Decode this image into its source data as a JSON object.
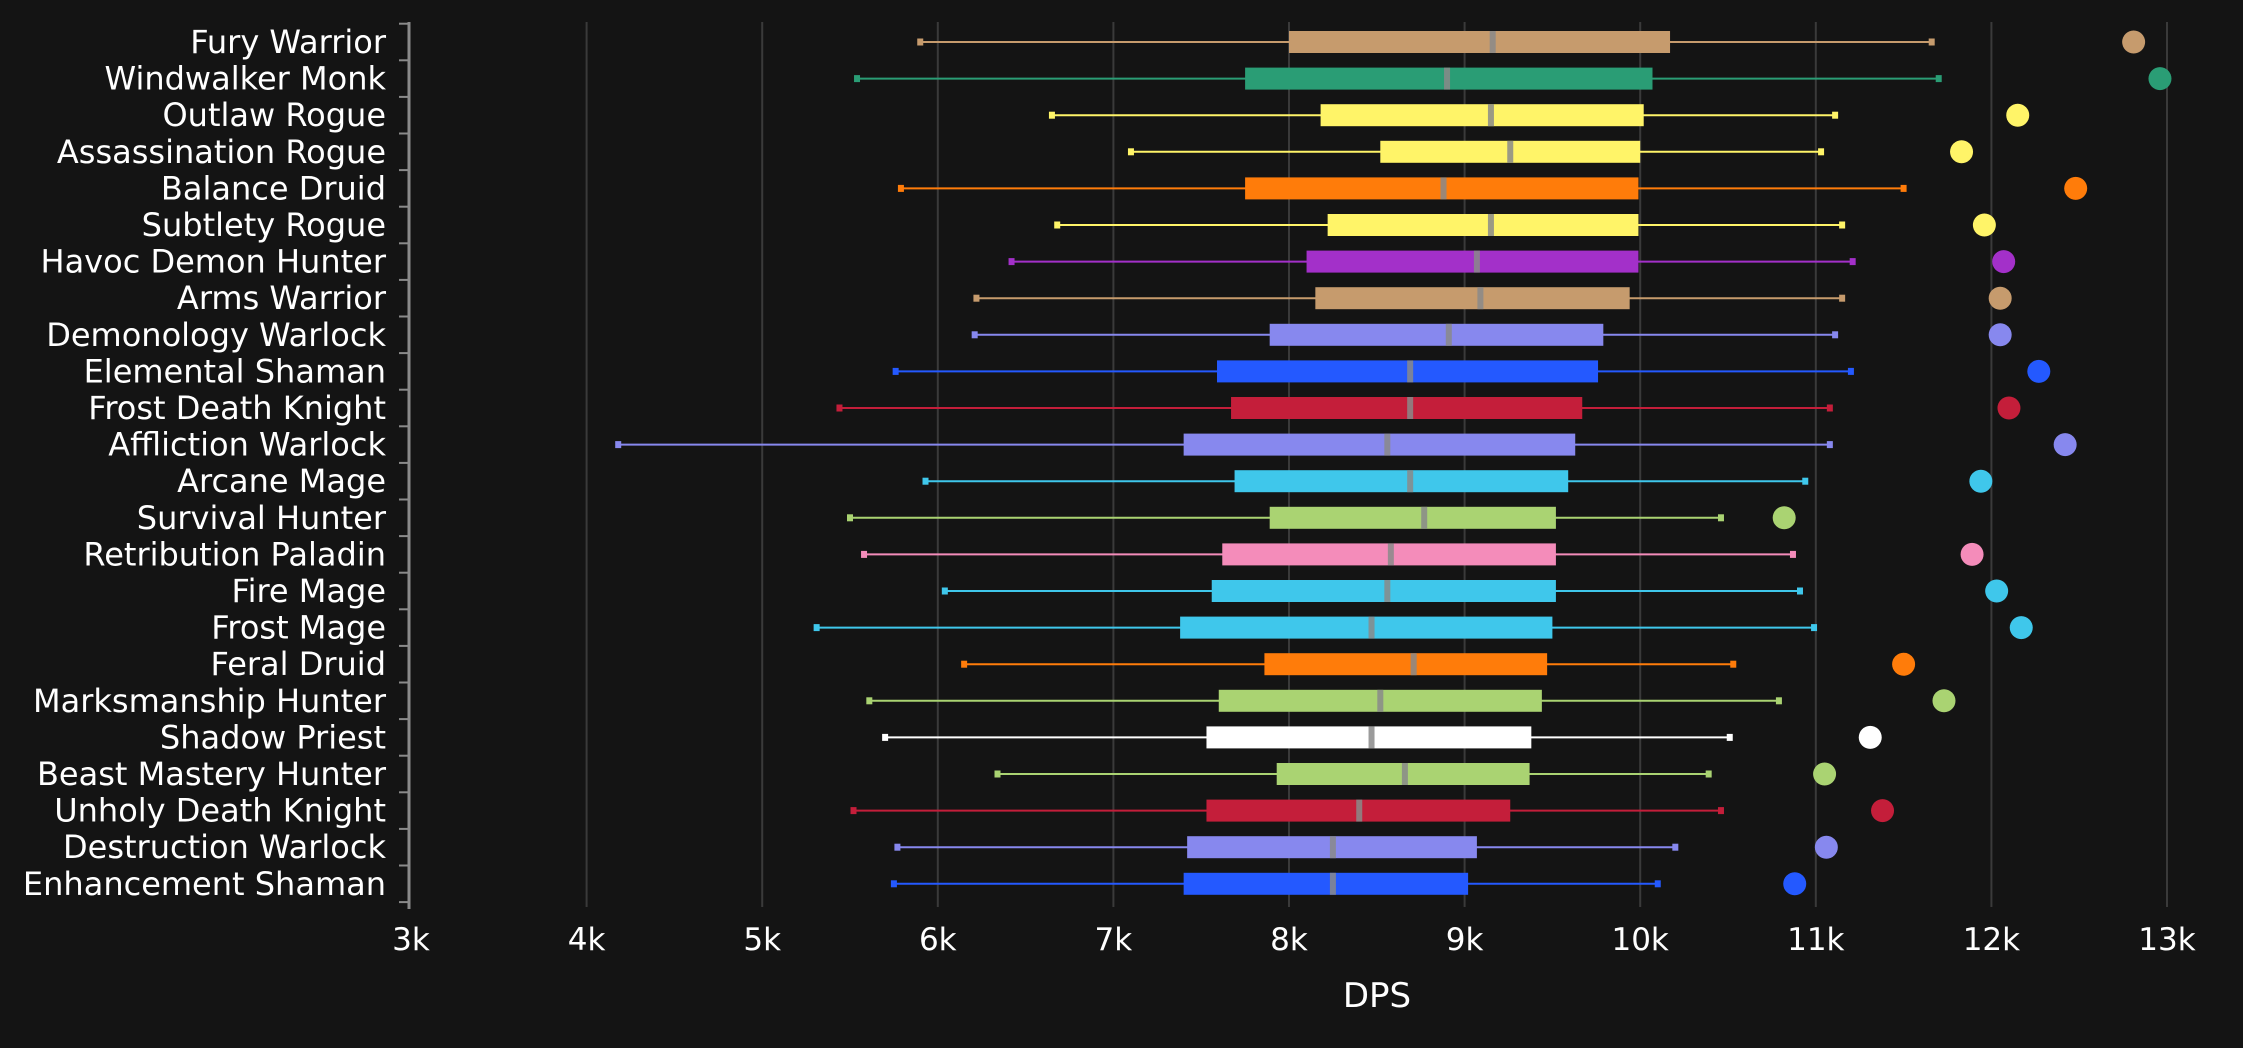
{
  "chart_data": {
    "type": "box",
    "orientation": "horizontal",
    "title": "",
    "xlabel": "DPS",
    "ylabel": "",
    "xlim": [
      3000,
      13000
    ],
    "x_ticks": [
      3000,
      4000,
      5000,
      6000,
      7000,
      8000,
      9000,
      10000,
      11000,
      12000,
      13000
    ],
    "x_tick_labels": [
      "3k",
      "4k",
      "5k",
      "6k",
      "7k",
      "8k",
      "9k",
      "10k",
      "11k",
      "12k",
      "13k"
    ],
    "grid": "vertical",
    "series": [
      {
        "name": "Fury Warrior",
        "color": "#C69B6D",
        "min": 5900,
        "q1": 8000,
        "median": 9160,
        "q3": 10170,
        "max": 11660,
        "outlier": 12810
      },
      {
        "name": "Windwalker Monk",
        "color": "#2A9D75",
        "min": 5540,
        "q1": 7750,
        "median": 8900,
        "q3": 10070,
        "max": 11700,
        "outlier": 12960
      },
      {
        "name": "Outlaw Rogue",
        "color": "#FFF468",
        "min": 6650,
        "q1": 8180,
        "median": 9150,
        "q3": 10020,
        "max": 11110,
        "outlier": 12150
      },
      {
        "name": "Assassination Rogue",
        "color": "#FFF468",
        "min": 7100,
        "q1": 8520,
        "median": 9260,
        "q3": 10000,
        "max": 11030,
        "outlier": 11830
      },
      {
        "name": "Balance Druid",
        "color": "#FF7C0A",
        "min": 5790,
        "q1": 7750,
        "median": 8880,
        "q3": 9990,
        "max": 11500,
        "outlier": 12480
      },
      {
        "name": "Subtlety Rogue",
        "color": "#FFF468",
        "min": 6680,
        "q1": 8220,
        "median": 9150,
        "q3": 9990,
        "max": 11150,
        "outlier": 11960
      },
      {
        "name": "Havoc Demon Hunter",
        "color": "#A330C9",
        "min": 6420,
        "q1": 8100,
        "median": 9070,
        "q3": 9990,
        "max": 11210,
        "outlier": 12070
      },
      {
        "name": "Arms Warrior",
        "color": "#C69B6D",
        "min": 6220,
        "q1": 8150,
        "median": 9090,
        "q3": 9940,
        "max": 11150,
        "outlier": 12050
      },
      {
        "name": "Demonology Warlock",
        "color": "#8788EE",
        "min": 6210,
        "q1": 7890,
        "median": 8910,
        "q3": 9790,
        "max": 11110,
        "outlier": 12050
      },
      {
        "name": "Elemental Shaman",
        "color": "#2459FF",
        "min": 5760,
        "q1": 7590,
        "median": 8690,
        "q3": 9760,
        "max": 11200,
        "outlier": 12270
      },
      {
        "name": "Frost Death Knight",
        "color": "#C41E3A",
        "min": 5440,
        "q1": 7670,
        "median": 8690,
        "q3": 9670,
        "max": 11080,
        "outlier": 12100
      },
      {
        "name": "Affliction Warlock",
        "color": "#8788EE",
        "min": 4180,
        "q1": 7400,
        "median": 8560,
        "q3": 9630,
        "max": 11080,
        "outlier": 12420
      },
      {
        "name": "Arcane Mage",
        "color": "#3FC7EB",
        "min": 5930,
        "q1": 7690,
        "median": 8690,
        "q3": 9590,
        "max": 10940,
        "outlier": 11940
      },
      {
        "name": "Survival Hunter",
        "color": "#AAD372",
        "min": 5500,
        "q1": 7890,
        "median": 8770,
        "q3": 9520,
        "max": 10460,
        "outlier": 10820
      },
      {
        "name": "Retribution Paladin",
        "color": "#F48CBA",
        "min": 5580,
        "q1": 7620,
        "median": 8580,
        "q3": 9520,
        "max": 10870,
        "outlier": 11890
      },
      {
        "name": "Fire Mage",
        "color": "#3FC7EB",
        "min": 6040,
        "q1": 7560,
        "median": 8560,
        "q3": 9520,
        "max": 10910,
        "outlier": 12030
      },
      {
        "name": "Frost Mage",
        "color": "#3FC7EB",
        "min": 5310,
        "q1": 7380,
        "median": 8470,
        "q3": 9500,
        "max": 10990,
        "outlier": 12170
      },
      {
        "name": "Feral Druid",
        "color": "#FF7C0A",
        "min": 6150,
        "q1": 7860,
        "median": 8710,
        "q3": 9470,
        "max": 10530,
        "outlier": 11500
      },
      {
        "name": "Marksmanship Hunter",
        "color": "#AAD372",
        "min": 5610,
        "q1": 7600,
        "median": 8520,
        "q3": 9440,
        "max": 10790,
        "outlier": 11730
      },
      {
        "name": "Shadow Priest",
        "color": "#FFFFFF",
        "min": 5700,
        "q1": 7530,
        "median": 8470,
        "q3": 9380,
        "max": 10510,
        "outlier": 11310
      },
      {
        "name": "Beast Mastery Hunter",
        "color": "#AAD372",
        "min": 6340,
        "q1": 7930,
        "median": 8660,
        "q3": 9370,
        "max": 10390,
        "outlier": 11050
      },
      {
        "name": "Unholy Death Knight",
        "color": "#C41E3A",
        "min": 5520,
        "q1": 7530,
        "median": 8400,
        "q3": 9260,
        "max": 10460,
        "outlier": 11380
      },
      {
        "name": "Destruction Warlock",
        "color": "#8788EE",
        "min": 5770,
        "q1": 7420,
        "median": 8250,
        "q3": 9070,
        "max": 10200,
        "outlier": 11060
      },
      {
        "name": "Enhancement Shaman",
        "color": "#2459FF",
        "min": 5750,
        "q1": 7400,
        "median": 8250,
        "q3": 9020,
        "max": 10100,
        "outlier": 10880
      }
    ]
  },
  "colors": {
    "background": "#141414",
    "grid": "#3a3a3a",
    "axis": "#8a8a8a",
    "text": "#ffffff",
    "median_mark": "#8a8a8a"
  }
}
